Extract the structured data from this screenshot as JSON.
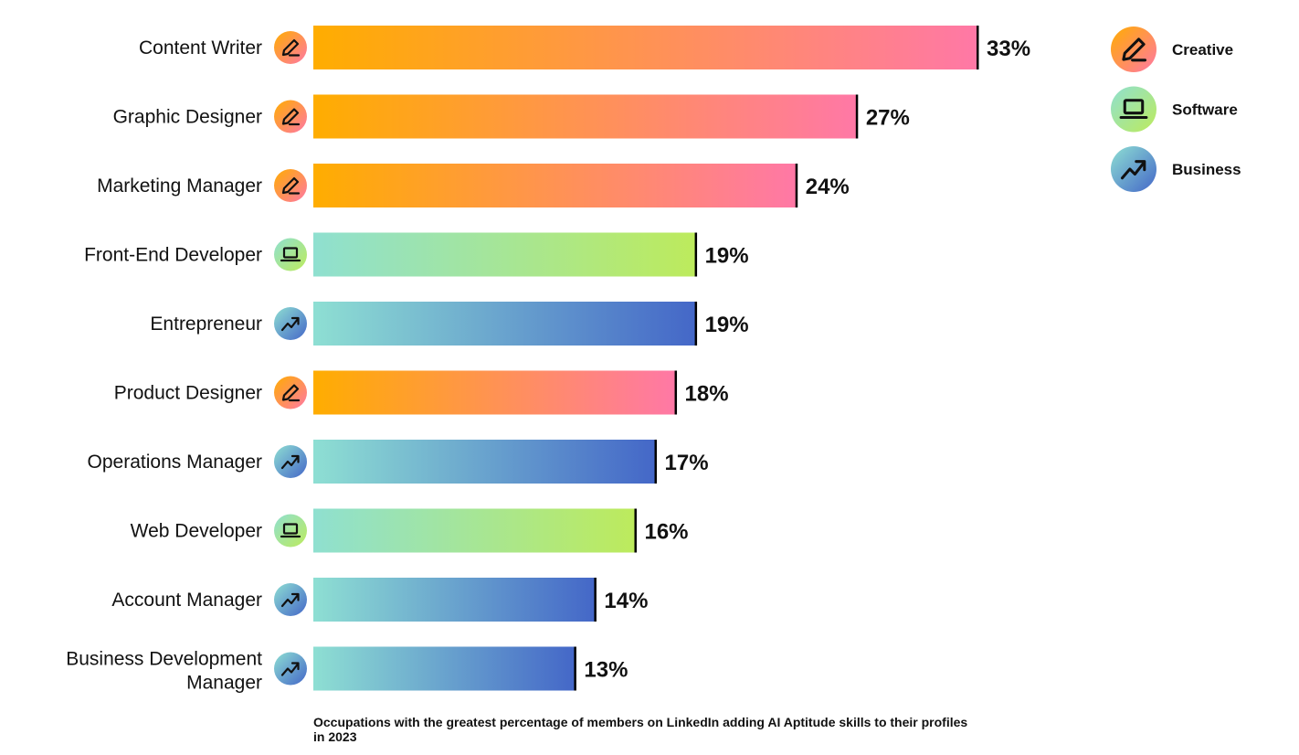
{
  "chart_data": {
    "type": "bar",
    "orientation": "horizontal",
    "unit": "%",
    "xlim": [
      0,
      33
    ],
    "categories": [
      "Content Writer",
      "Graphic Designer",
      "Marketing Manager",
      "Front-End Developer",
      "Entrepreneur",
      "Product Designer",
      "Operations Manager",
      "Web Developer",
      "Account Manager",
      "Business Development Manager"
    ],
    "values": [
      33,
      27,
      24,
      19,
      19,
      18,
      17,
      16,
      14,
      13
    ],
    "value_labels": [
      "33%",
      "27%",
      "24%",
      "19%",
      "19%",
      "18%",
      "17%",
      "16%",
      "14%",
      "13%"
    ],
    "groups": [
      "creative",
      "creative",
      "creative",
      "software",
      "business",
      "creative",
      "business",
      "software",
      "business",
      "business"
    ],
    "legend": {
      "placement": "top-right",
      "items": [
        {
          "key": "creative",
          "label": "Creative",
          "icon": "pencil-icon",
          "color_start": "#FFAD00",
          "color_end": "#FF78A6"
        },
        {
          "key": "software",
          "label": "Software",
          "icon": "laptop-icon",
          "color_start": "#8FE0D0",
          "color_end": "#BDEB5C"
        },
        {
          "key": "business",
          "label": "Business",
          "icon": "trend-up-icon",
          "color_start": "#8EDFD3",
          "color_end": "#4467C8"
        }
      ]
    },
    "caption": "Occupations with the greatest percentage of members on LinkedIn adding AI Aptitude skills to their profiles in 2023",
    "grid": false
  }
}
